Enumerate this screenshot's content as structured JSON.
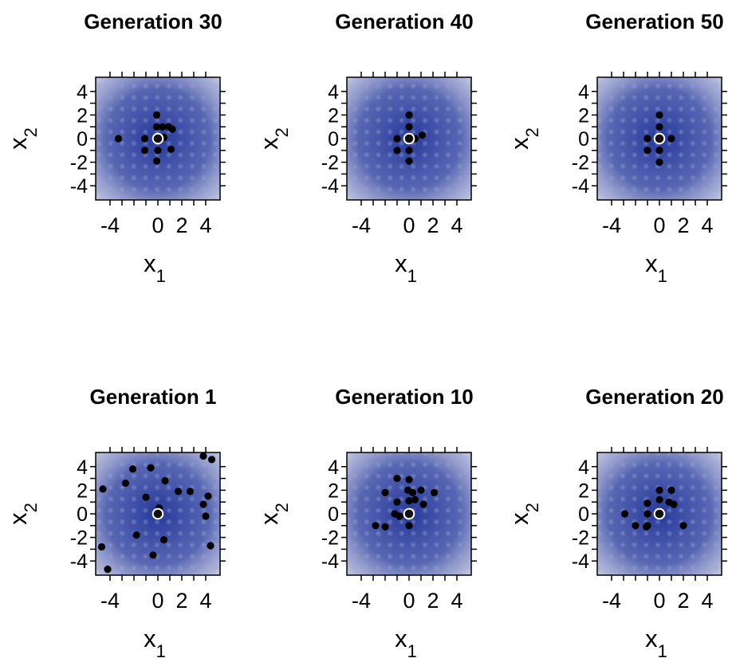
{
  "chart_data": [
    {
      "type": "scatter",
      "title": "Generation 30",
      "xlabel": "x",
      "xlabel_sub": "1",
      "ylabel": "x",
      "ylabel_sub": "2",
      "xlim": [
        -5.2,
        5.2
      ],
      "ylim": [
        -5.2,
        5.2
      ],
      "xticks": [
        -4,
        0,
        2,
        4
      ],
      "yticks": [
        4,
        2,
        0,
        -2,
        -4
      ],
      "background": "contour-grid",
      "point_color": "#000000",
      "optimum": {
        "x": 0,
        "y": 0,
        "color": "#ffffff"
      },
      "points": [
        {
          "x": -3.3,
          "y": 0.0
        },
        {
          "x": -1.1,
          "y": 0.0
        },
        {
          "x": -1.1,
          "y": -1.0
        },
        {
          "x": -0.1,
          "y": 2.0
        },
        {
          "x": -0.1,
          "y": 1.0
        },
        {
          "x": 0.4,
          "y": 1.0
        },
        {
          "x": 0.9,
          "y": 1.0
        },
        {
          "x": 1.2,
          "y": 0.8
        },
        {
          "x": 0.0,
          "y": -1.0
        },
        {
          "x": -0.1,
          "y": -1.9
        },
        {
          "x": 1.1,
          "y": -0.9
        },
        {
          "x": 0.5,
          "y": 0.1
        }
      ]
    },
    {
      "type": "scatter",
      "title": "Generation 40",
      "xlabel": "x",
      "xlabel_sub": "1",
      "ylabel": "x",
      "ylabel_sub": "2",
      "xlim": [
        -5.2,
        5.2
      ],
      "ylim": [
        -5.2,
        5.2
      ],
      "xticks": [
        -4,
        0,
        2,
        4
      ],
      "yticks": [
        4,
        2,
        0,
        -2,
        -4
      ],
      "background": "contour-grid",
      "point_color": "#000000",
      "optimum": {
        "x": 0,
        "y": 0,
        "color": "#ffffff"
      },
      "points": [
        {
          "x": 0.0,
          "y": 2.0
        },
        {
          "x": 0.0,
          "y": 1.0
        },
        {
          "x": -1.0,
          "y": 0.0
        },
        {
          "x": -1.0,
          "y": -1.0
        },
        {
          "x": 0.0,
          "y": -1.0
        },
        {
          "x": 0.0,
          "y": -1.9
        },
        {
          "x": 1.1,
          "y": 0.3
        },
        {
          "x": 0.5,
          "y": 0.0
        }
      ]
    },
    {
      "type": "scatter",
      "title": "Generation 50",
      "xlabel": "x",
      "xlabel_sub": "1",
      "ylabel": "x",
      "ylabel_sub": "2",
      "xlim": [
        -5.2,
        5.2
      ],
      "ylim": [
        -5.2,
        5.2
      ],
      "xticks": [
        -4,
        0,
        2,
        4
      ],
      "yticks": [
        4,
        2,
        0,
        -2,
        -4
      ],
      "background": "contour-grid",
      "point_color": "#000000",
      "optimum": {
        "x": 0,
        "y": 0,
        "color": "#ffffff"
      },
      "points": [
        {
          "x": 0.0,
          "y": 2.0
        },
        {
          "x": 0.0,
          "y": 1.0
        },
        {
          "x": -1.0,
          "y": 0.0
        },
        {
          "x": -1.0,
          "y": -1.0
        },
        {
          "x": 0.0,
          "y": -1.0
        },
        {
          "x": 0.0,
          "y": -2.0
        },
        {
          "x": 1.0,
          "y": 0.0
        }
      ]
    },
    {
      "type": "scatter",
      "title": "Generation 1",
      "xlabel": "x",
      "xlabel_sub": "1",
      "ylabel": "x",
      "ylabel_sub": "2",
      "xlim": [
        -5.2,
        5.2
      ],
      "ylim": [
        -5.2,
        5.2
      ],
      "xticks": [
        -4,
        0,
        2,
        4
      ],
      "yticks": [
        4,
        2,
        0,
        -2,
        -4
      ],
      "background": "contour-grid",
      "point_color": "#000000",
      "optimum": {
        "x": 0,
        "y": 0,
        "color": "#ffffff"
      },
      "points": [
        {
          "x": -4.6,
          "y": 2.1
        },
        {
          "x": -2.1,
          "y": 3.8
        },
        {
          "x": -2.7,
          "y": 2.6
        },
        {
          "x": -0.6,
          "y": 3.9
        },
        {
          "x": 0.6,
          "y": 2.8
        },
        {
          "x": -1.0,
          "y": 1.4
        },
        {
          "x": 0.1,
          "y": 0.5
        },
        {
          "x": 1.7,
          "y": 1.9
        },
        {
          "x": 2.7,
          "y": 1.9
        },
        {
          "x": 3.8,
          "y": 4.9
        },
        {
          "x": 4.5,
          "y": 4.6
        },
        {
          "x": 4.2,
          "y": 1.5
        },
        {
          "x": 3.8,
          "y": 0.8
        },
        {
          "x": 4.0,
          "y": -0.2
        },
        {
          "x": 4.4,
          "y": -2.7
        },
        {
          "x": 0.5,
          "y": -2.2
        },
        {
          "x": -1.8,
          "y": -1.8
        },
        {
          "x": -0.4,
          "y": -3.5
        },
        {
          "x": -4.7,
          "y": -2.8
        },
        {
          "x": -4.2,
          "y": -4.7
        }
      ]
    },
    {
      "type": "scatter",
      "title": "Generation 10",
      "xlabel": "x",
      "xlabel_sub": "1",
      "ylabel": "x",
      "ylabel_sub": "2",
      "xlim": [
        -5.2,
        5.2
      ],
      "ylim": [
        -5.2,
        5.2
      ],
      "xticks": [
        -4,
        0,
        2,
        4
      ],
      "yticks": [
        4,
        2,
        0,
        -2,
        -4
      ],
      "background": "contour-grid",
      "point_color": "#000000",
      "optimum": {
        "x": 0,
        "y": 0,
        "color": "#ffffff"
      },
      "points": [
        {
          "x": -1.0,
          "y": 3.0
        },
        {
          "x": 0.0,
          "y": 2.9
        },
        {
          "x": -2.0,
          "y": 1.8
        },
        {
          "x": -0.1,
          "y": 2.0
        },
        {
          "x": 0.3,
          "y": 1.8
        },
        {
          "x": 1.0,
          "y": 2.0
        },
        {
          "x": 2.1,
          "y": 1.8
        },
        {
          "x": 0.0,
          "y": 1.1
        },
        {
          "x": 0.5,
          "y": 1.2
        },
        {
          "x": 1.2,
          "y": 0.8
        },
        {
          "x": -1.0,
          "y": 1.0
        },
        {
          "x": -1.2,
          "y": 0.0
        },
        {
          "x": -0.8,
          "y": -0.2
        },
        {
          "x": 0.0,
          "y": -1.0
        },
        {
          "x": -2.8,
          "y": -1.0
        },
        {
          "x": -2.0,
          "y": -1.1
        }
      ]
    },
    {
      "type": "scatter",
      "title": "Generation 20",
      "xlabel": "x",
      "xlabel_sub": "1",
      "ylabel": "x",
      "ylabel_sub": "2",
      "xlim": [
        -5.2,
        5.2
      ],
      "ylim": [
        -5.2,
        5.2
      ],
      "xticks": [
        -4,
        0,
        2,
        4
      ],
      "yticks": [
        4,
        2,
        0,
        -2,
        -4
      ],
      "background": "contour-grid",
      "point_color": "#000000",
      "optimum": {
        "x": 0,
        "y": 0,
        "color": "#ffffff"
      },
      "points": [
        {
          "x": 0.0,
          "y": 2.0
        },
        {
          "x": 1.0,
          "y": 2.0
        },
        {
          "x": 0.0,
          "y": 1.2
        },
        {
          "x": 0.8,
          "y": 1.0
        },
        {
          "x": 1.2,
          "y": 0.8
        },
        {
          "x": -1.0,
          "y": 0.9
        },
        {
          "x": -2.9,
          "y": 0.0
        },
        {
          "x": -1.0,
          "y": 0.0
        },
        {
          "x": -2.0,
          "y": -1.0
        },
        {
          "x": -1.1,
          "y": -1.1
        },
        {
          "x": -1.0,
          "y": -1.0
        },
        {
          "x": 2.0,
          "y": -1.0
        }
      ]
    }
  ]
}
